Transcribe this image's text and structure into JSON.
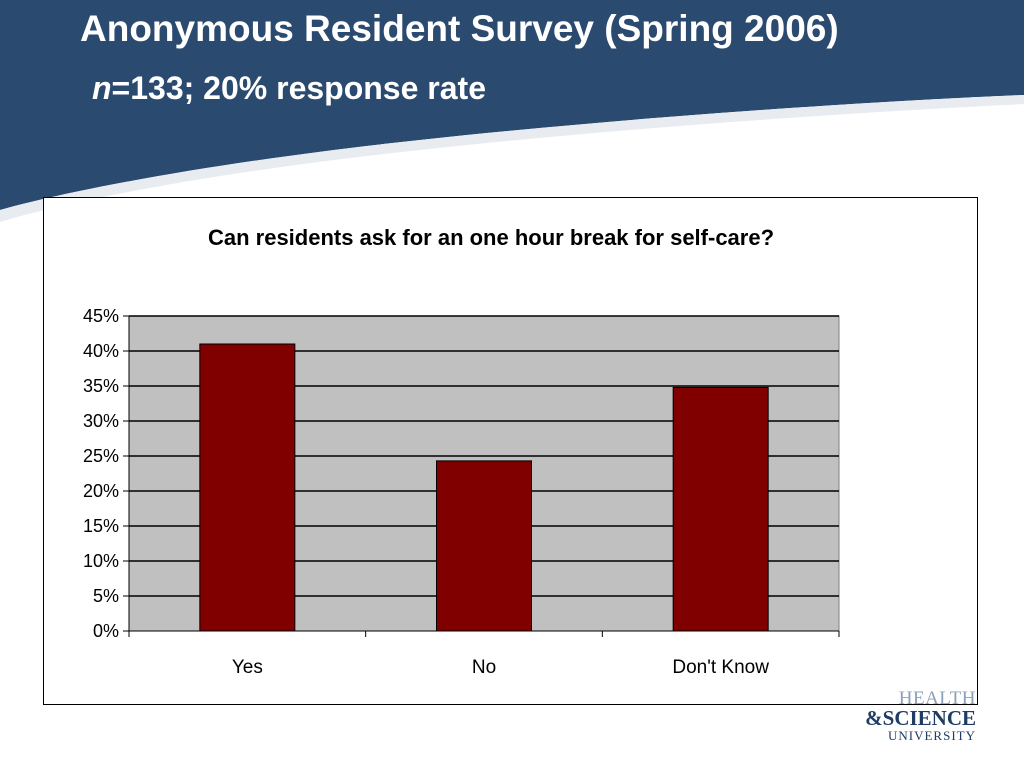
{
  "slide": {
    "title": "Anonymous Resident Survey (Spring 2006)",
    "subtitle_n": "n",
    "subtitle_rest": "=133; 20% response rate",
    "colors": {
      "banner": "#2b4a6f",
      "bar": "#800000",
      "plot_bg": "#c0c0c0"
    }
  },
  "logo": {
    "line1": "HEALTH",
    "line2": "&SCIENCE",
    "line3": "UNIVERSITY"
  },
  "chart_data": {
    "type": "bar",
    "title": "Can residents ask for an one hour break for self-care?",
    "categories": [
      "Yes",
      "No",
      "Don't Know"
    ],
    "values": [
      41,
      24.3,
      34.8
    ],
    "ylim": [
      0,
      45
    ],
    "yticks": [
      "0%",
      "5%",
      "10%",
      "15%",
      "20%",
      "25%",
      "30%",
      "35%",
      "40%",
      "45%"
    ],
    "ytick_values": [
      0,
      5,
      10,
      15,
      20,
      25,
      30,
      35,
      40,
      45
    ],
    "grid": true,
    "legend": "none"
  }
}
